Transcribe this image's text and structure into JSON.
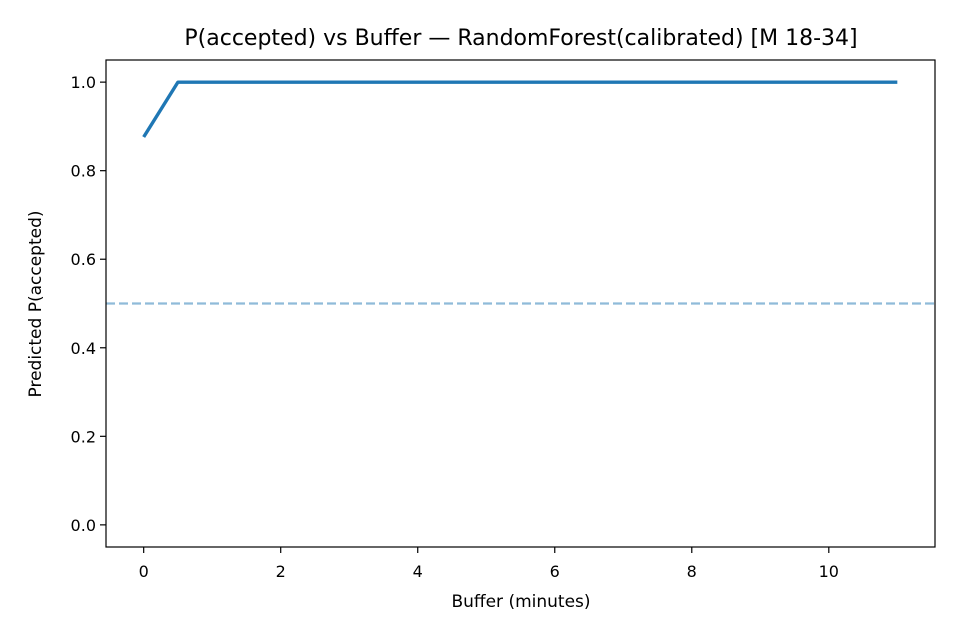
{
  "chart_data": {
    "type": "line",
    "title": "P(accepted) vs Buffer — RandomForest(calibrated) [M 18-34]",
    "xlabel": "Buffer (minutes)",
    "ylabel": "Predicted P(accepted)",
    "xlim": [
      -0.55,
      11.55
    ],
    "ylim": [
      -0.05,
      1.05
    ],
    "xticks": [
      0,
      2,
      4,
      6,
      8,
      10
    ],
    "yticks": [
      0.0,
      0.2,
      0.4,
      0.6,
      0.8,
      1.0
    ],
    "xtick_labels": [
      "0",
      "2",
      "4",
      "6",
      "8",
      "10"
    ],
    "ytick_labels": [
      "0.0",
      "0.2",
      "0.4",
      "0.6",
      "0.8",
      "1.0"
    ],
    "grid": false,
    "series": [
      {
        "name": "P(accepted)",
        "color": "#1f77b4",
        "x": [
          0,
          0.5,
          1,
          1.5,
          2,
          2.5,
          3,
          3.5,
          4,
          4.5,
          5,
          5.5,
          6,
          6.5,
          7,
          7.5,
          8,
          8.5,
          9,
          9.5,
          10,
          10.5,
          11
        ],
        "y": [
          0.876,
          1.0,
          1.0,
          1.0,
          1.0,
          1.0,
          1.0,
          1.0,
          1.0,
          1.0,
          1.0,
          1.0,
          1.0,
          1.0,
          1.0,
          1.0,
          1.0,
          1.0,
          1.0,
          1.0,
          1.0,
          1.0,
          1.0
        ]
      }
    ],
    "reference_line": {
      "y": 0.5,
      "style": "dashed",
      "color": "#1f77b4",
      "opacity": 0.5
    }
  }
}
